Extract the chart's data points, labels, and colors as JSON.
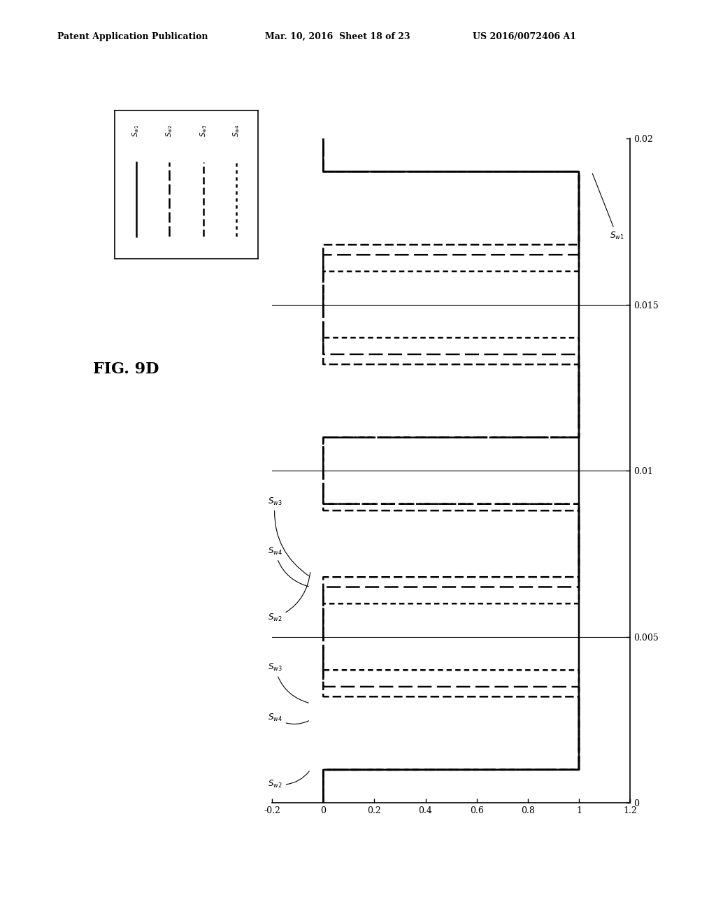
{
  "header_left": "Patent Application Publication",
  "header_mid": "Mar. 10, 2016  Sheet 18 of 23",
  "header_right": "US 2016/0072406 A1",
  "fig_label": "FIG. 9D",
  "background_color": "#ffffff",
  "line_color": "#000000",
  "xlim": [
    -0.2,
    1.2
  ],
  "ylim": [
    0,
    0.02
  ],
  "xticks": [
    -0.2,
    0,
    0.2,
    0.4,
    0.6,
    0.8,
    1.0,
    1.2
  ],
  "yticks": [
    0,
    0.005,
    0.01,
    0.015,
    0.02
  ],
  "xtick_labels": [
    "-0.2",
    "0",
    "0.2",
    "0.4",
    "0.6",
    "0.8",
    "1",
    "1.2"
  ],
  "ytick_labels": [
    "0",
    "0.005",
    "0.01",
    "0.015",
    "0.02"
  ],
  "sw1_color": "#000000",
  "sw2_color": "#000000",
  "sw3_color": "#000000",
  "sw4_color": "#000000",
  "lw": 1.8,
  "lw_thin": 0.9
}
